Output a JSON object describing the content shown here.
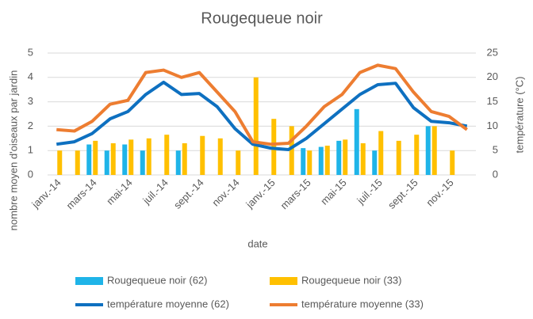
{
  "chart_data": {
    "type": "bar_line",
    "title": "Rougequeue noir",
    "x_label": "date",
    "y_label": "nombre moyen d'oiseaux par jardin",
    "y2_label": "température (°C)",
    "categories": [
      "janv.-14",
      null,
      "mars-14",
      null,
      "mai-14",
      null,
      "juil.-14",
      null,
      "sept.-14",
      null,
      "nov.-14",
      null,
      "janv.-15",
      null,
      "mars-15",
      null,
      "mai-15",
      null,
      "juil.-15",
      null,
      "sept.-15",
      null,
      "nov.-15",
      null
    ],
    "series": [
      {
        "name": "Rougequeue noir (62)",
        "kind": "bar",
        "color": "#1fb4e8",
        "values": [
          null,
          null,
          1.25,
          1,
          1.25,
          1,
          null,
          1,
          null,
          null,
          null,
          null,
          null,
          null,
          1.1,
          1.15,
          1.4,
          2.7,
          1,
          null,
          null,
          2,
          null,
          null
        ]
      },
      {
        "name": "Rougequeue noir (33)",
        "kind": "bar",
        "color": "#ffc000",
        "values": [
          1,
          1,
          1.4,
          1.3,
          1.45,
          1.5,
          1.65,
          1.3,
          1.6,
          1.5,
          1,
          4,
          2.3,
          2,
          1,
          1.2,
          1.45,
          1.3,
          1.8,
          1.4,
          1.65,
          2,
          1,
          null
        ]
      },
      {
        "name": "température moyenne (62)",
        "kind": "line",
        "axis": "y2",
        "color": "#0e70c0",
        "values": [
          6.3,
          6.8,
          8.5,
          11.5,
          13,
          16.5,
          19,
          16.5,
          16.7,
          14,
          9.5,
          6.3,
          5.5,
          5.2,
          7.5,
          10.5,
          13.5,
          16.5,
          18.5,
          18.8,
          13.8,
          11,
          10.7,
          10
        ]
      },
      {
        "name": "température moyenne (33)",
        "kind": "line",
        "axis": "y2",
        "color": "#ed7d31",
        "values": [
          9.3,
          9,
          11,
          14.5,
          15.3,
          21,
          21.5,
          20,
          21,
          17,
          13,
          6.8,
          6.3,
          6.5,
          10,
          14,
          16.5,
          21,
          22.5,
          21.8,
          17,
          13,
          12,
          9.3
        ]
      }
    ],
    "ylim": [
      0,
      5
    ],
    "yticks": [
      0,
      1,
      2,
      3,
      4,
      5
    ],
    "y2lim": [
      0,
      25
    ],
    "y2ticks": [
      0,
      5,
      10,
      15,
      20,
      25
    ],
    "grid": true
  }
}
